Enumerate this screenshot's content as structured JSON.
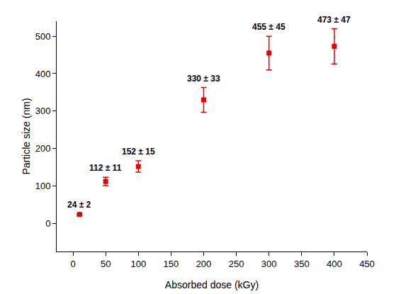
{
  "chart_data": {
    "type": "scatter",
    "x": [
      10,
      50,
      100,
      200,
      300,
      400
    ],
    "values": [
      24,
      112,
      152,
      330,
      455,
      473
    ],
    "errors": [
      2,
      11,
      15,
      33,
      45,
      47
    ],
    "value_labels": [
      "24 ± 2",
      "112 ± 11",
      "152 ± 15",
      "330 ± 33",
      "455 ± 45",
      "473 ± 47"
    ],
    "data_labels": true,
    "color": "#e60000",
    "marker": "square",
    "xlabel": "Absorbed dose (kGy)",
    "ylabel": "Particle size (nm)",
    "xlim": [
      -25,
      450
    ],
    "ylim": [
      -75,
      540
    ],
    "xticks": [
      0,
      50,
      100,
      150,
      200,
      250,
      300,
      350,
      400,
      450
    ],
    "yticks": [
      0,
      100,
      200,
      300,
      400,
      500
    ],
    "grid": false
  }
}
